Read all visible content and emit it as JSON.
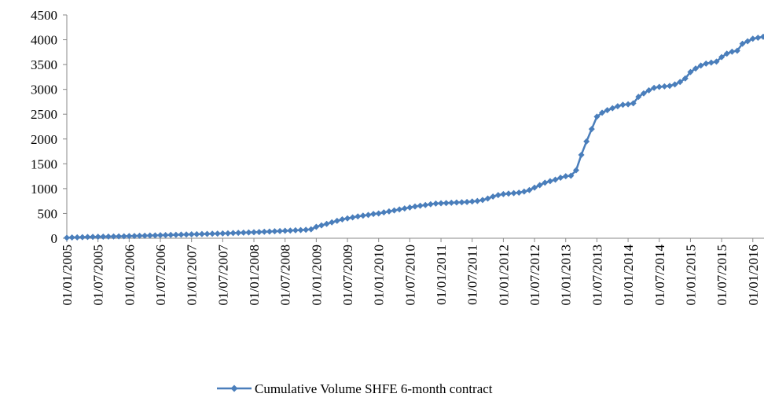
{
  "chart_data": {
    "type": "line",
    "x": [
      "01/01/2005",
      "01/02/2005",
      "01/03/2005",
      "01/04/2005",
      "01/05/2005",
      "01/06/2005",
      "01/07/2005",
      "01/08/2005",
      "01/09/2005",
      "01/10/2005",
      "01/11/2005",
      "01/12/2005",
      "01/01/2006",
      "01/02/2006",
      "01/03/2006",
      "01/04/2006",
      "01/05/2006",
      "01/06/2006",
      "01/07/2006",
      "01/08/2006",
      "01/09/2006",
      "01/10/2006",
      "01/11/2006",
      "01/12/2006",
      "01/01/2007",
      "01/02/2007",
      "01/03/2007",
      "01/04/2007",
      "01/05/2007",
      "01/06/2007",
      "01/07/2007",
      "01/08/2007",
      "01/09/2007",
      "01/10/2007",
      "01/11/2007",
      "01/12/2007",
      "01/01/2008",
      "01/02/2008",
      "01/03/2008",
      "01/04/2008",
      "01/05/2008",
      "01/06/2008",
      "01/07/2008",
      "01/08/2008",
      "01/09/2008",
      "01/10/2008",
      "01/11/2008",
      "01/12/2008",
      "01/01/2009",
      "01/02/2009",
      "01/03/2009",
      "01/04/2009",
      "01/05/2009",
      "01/06/2009",
      "01/07/2009",
      "01/08/2009",
      "01/09/2009",
      "01/10/2009",
      "01/11/2009",
      "01/12/2009",
      "01/01/2010",
      "01/02/2010",
      "01/03/2010",
      "01/04/2010",
      "01/05/2010",
      "01/06/2010",
      "01/07/2010",
      "01/08/2010",
      "01/09/2010",
      "01/10/2010",
      "01/11/2010",
      "01/12/2010",
      "01/01/2011",
      "01/02/2011",
      "01/03/2011",
      "01/04/2011",
      "01/05/2011",
      "01/06/2011",
      "01/07/2011",
      "01/08/2011",
      "01/09/2011",
      "01/10/2011",
      "01/11/2011",
      "01/12/2011",
      "01/01/2012",
      "01/02/2012",
      "01/03/2012",
      "01/04/2012",
      "01/05/2012",
      "01/06/2012",
      "01/07/2012",
      "01/08/2012",
      "01/09/2012",
      "01/10/2012",
      "01/11/2012",
      "01/12/2012",
      "01/01/2013",
      "01/02/2013",
      "01/03/2013",
      "01/04/2013",
      "01/05/2013",
      "01/06/2013",
      "01/07/2013",
      "01/08/2013",
      "01/09/2013",
      "01/10/2013",
      "01/11/2013",
      "01/12/2013",
      "01/01/2014",
      "01/02/2014",
      "01/03/2014",
      "01/04/2014",
      "01/05/2014",
      "01/06/2014",
      "01/07/2014",
      "01/08/2014",
      "01/09/2014",
      "01/10/2014",
      "01/11/2014",
      "01/12/2014",
      "01/01/2015",
      "01/02/2015",
      "01/03/2015",
      "01/04/2015",
      "01/05/2015",
      "01/06/2015",
      "01/07/2015",
      "01/08/2015",
      "01/09/2015",
      "01/10/2015",
      "01/11/2015",
      "01/12/2015",
      "01/01/2016",
      "01/02/2016",
      "01/03/2016"
    ],
    "series": [
      {
        "name": "Cumulative Volume SHFE 6-month contract",
        "color": "#4a7ebb",
        "values": [
          10,
          15,
          18,
          22,
          25,
          28,
          30,
          32,
          34,
          36,
          38,
          40,
          43,
          46,
          49,
          52,
          55,
          58,
          61,
          64,
          67,
          70,
          73,
          76,
          79,
          82,
          85,
          88,
          91,
          94,
          97,
          100,
          104,
          108,
          112,
          116,
          120,
          125,
          130,
          135,
          140,
          145,
          150,
          155,
          160,
          165,
          170,
          180,
          230,
          260,
          290,
          320,
          350,
          380,
          400,
          420,
          440,
          455,
          470,
          490,
          500,
          520,
          540,
          560,
          580,
          600,
          620,
          640,
          655,
          670,
          685,
          700,
          705,
          710,
          715,
          720,
          725,
          730,
          740,
          750,
          770,
          800,
          840,
          870,
          890,
          900,
          910,
          920,
          940,
          970,
          1020,
          1070,
          1120,
          1150,
          1180,
          1220,
          1250,
          1260,
          1370,
          1680,
          1950,
          2200,
          2450,
          2530,
          2580,
          2620,
          2660,
          2690,
          2700,
          2720,
          2850,
          2920,
          2980,
          3030,
          3050,
          3060,
          3070,
          3100,
          3150,
          3220,
          3350,
          3420,
          3480,
          3520,
          3540,
          3560,
          3650,
          3720,
          3760,
          3780,
          3920,
          3970,
          4020,
          4040,
          4060
        ]
      }
    ],
    "xlim": [
      "01/01/2005",
      "01/03/2016"
    ],
    "xticks": [
      "01/01/2005",
      "01/07/2005",
      "01/01/2006",
      "01/07/2006",
      "01/01/2007",
      "01/07/2007",
      "01/01/2008",
      "01/07/2008",
      "01/01/2009",
      "01/07/2009",
      "01/01/2010",
      "01/07/2010",
      "01/01/2011",
      "01/07/2011",
      "01/01/2012",
      "01/07/2012",
      "01/01/2013",
      "01/07/2013",
      "01/01/2014",
      "01/07/2014",
      "01/01/2015",
      "01/07/2015",
      "01/01/2016"
    ],
    "ylim": [
      0,
      4500
    ],
    "yticks": [
      0,
      500,
      1000,
      1500,
      2000,
      2500,
      3000,
      3500,
      4000,
      4500
    ],
    "grid": false,
    "legend": "bottom"
  }
}
